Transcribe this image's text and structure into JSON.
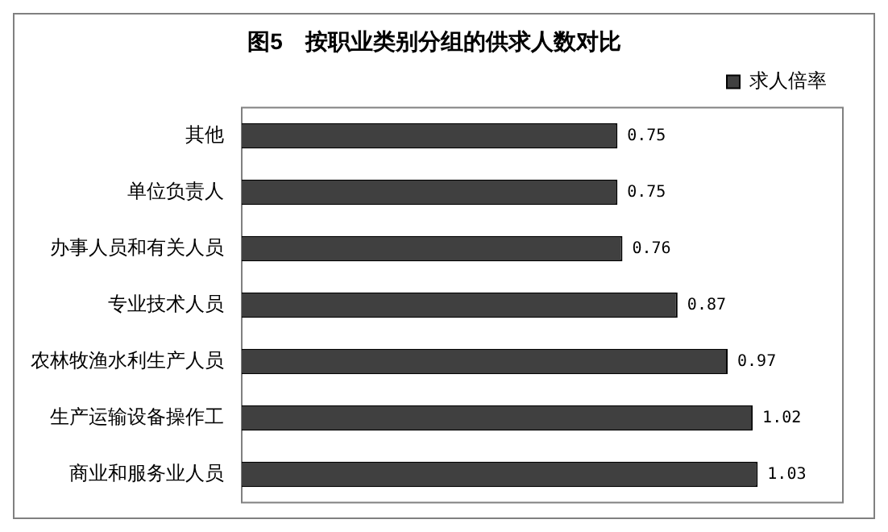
{
  "chart_data": {
    "type": "bar",
    "orientation": "horizontal",
    "title": "图5　按职业类别分组的供求人数对比",
    "categories": [
      "其他",
      "单位负责人",
      "办事人员和有关人员",
      "专业技术人员",
      "农林牧渔水利生产人员",
      "生产运输设备操作工",
      "商业和服务业人员"
    ],
    "series": [
      {
        "name": "求人倍率",
        "color": "#404040",
        "values": [
          0.75,
          0.75,
          0.76,
          0.87,
          0.97,
          1.02,
          1.03
        ]
      }
    ],
    "data_labels": true,
    "legend": "top right"
  }
}
